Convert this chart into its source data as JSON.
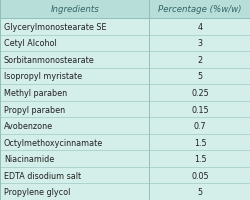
{
  "title_row": [
    "Ingredients",
    "Percentage (%w/w)"
  ],
  "rows": [
    [
      "Glycerylmonostearate SE",
      "4"
    ],
    [
      "Cetyl Alcohol",
      "3"
    ],
    [
      "Sorbitanmonostearate",
      "2"
    ],
    [
      "Isopropyl myristate",
      "5"
    ],
    [
      "Methyl paraben",
      "0.25"
    ],
    [
      "Propyl paraben",
      "0.15"
    ],
    [
      "Avobenzone",
      "0.7"
    ],
    [
      "Octylmethoxycinnamate",
      "1.5"
    ],
    [
      "Niacinamide",
      "1.5"
    ],
    [
      "EDTA disodium salt",
      "0.05"
    ],
    [
      "Propylene glycol",
      "5"
    ]
  ],
  "bg_color": "#d4eeea",
  "header_bg_color": "#b8deda",
  "text_color": "#222222",
  "header_text_color": "#336666",
  "border_color": "#90c0bc",
  "font_size": 5.8,
  "header_font_size": 6.2,
  "col_split": 0.595,
  "figwidth": 2.51,
  "figheight": 2.01,
  "dpi": 100
}
